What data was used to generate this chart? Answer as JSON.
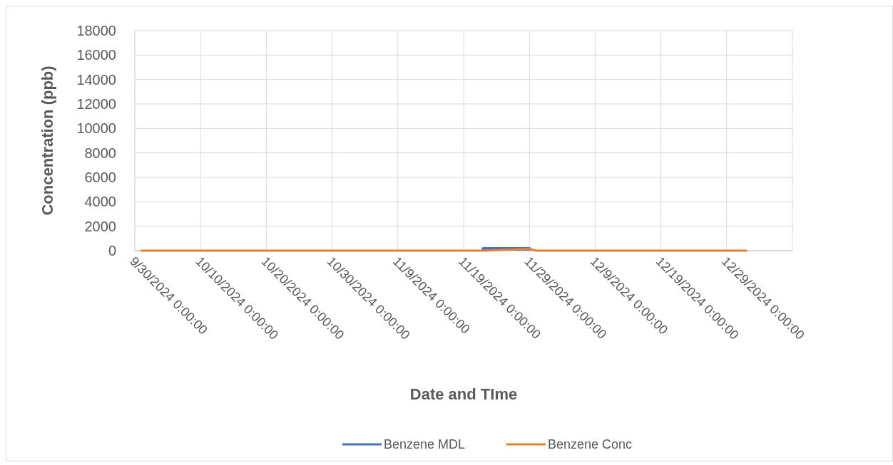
{
  "chart_data": {
    "type": "line",
    "xlabel": "Date and TIme",
    "ylabel": "Concentration (ppb)",
    "xlim": [
      "2024-09-30",
      "2025-01-08"
    ],
    "xticks": [
      {
        "value": "2024-09-30",
        "label": "9/30/2024 0:00:00"
      },
      {
        "value": "2024-10-10",
        "label": "10/10/2024 0:00:00"
      },
      {
        "value": "2024-10-20",
        "label": "10/20/2024 0:00:00"
      },
      {
        "value": "2024-10-30",
        "label": "10/30/2024 0:00:00"
      },
      {
        "value": "2024-11-09",
        "label": "11/9/2024 0:00:00"
      },
      {
        "value": "2024-11-19",
        "label": "11/19/2024 0:00:00"
      },
      {
        "value": "2024-11-29",
        "label": "11/29/2024 0:00:00"
      },
      {
        "value": "2024-12-09",
        "label": "12/9/2024 0:00:00"
      },
      {
        "value": "2024-12-19",
        "label": "12/19/2024 0:00:00"
      },
      {
        "value": "2024-12-29",
        "label": "12/29/2024 0:00:00"
      }
    ],
    "ylim": [
      0,
      18000
    ],
    "yticks": [
      0,
      2000,
      4000,
      6000,
      8000,
      10000,
      12000,
      14000,
      16000,
      18000
    ],
    "grid": true,
    "legend": "bottom",
    "marker": "none",
    "line_style": "solid",
    "series": [
      {
        "name": "Benzene MDL",
        "color": "#4472c4",
        "x": [
          "2024-11-22",
          "2024-11-29"
        ],
        "values": [
          150,
          150
        ]
      },
      {
        "name": "Benzene Conc",
        "color": "#ed7d31",
        "x": [
          "2024-10-01",
          "2024-11-22",
          "2024-11-29",
          "2024-11-30",
          "2025-01-01"
        ],
        "values": [
          0,
          0,
          150,
          0,
          0
        ]
      }
    ]
  }
}
